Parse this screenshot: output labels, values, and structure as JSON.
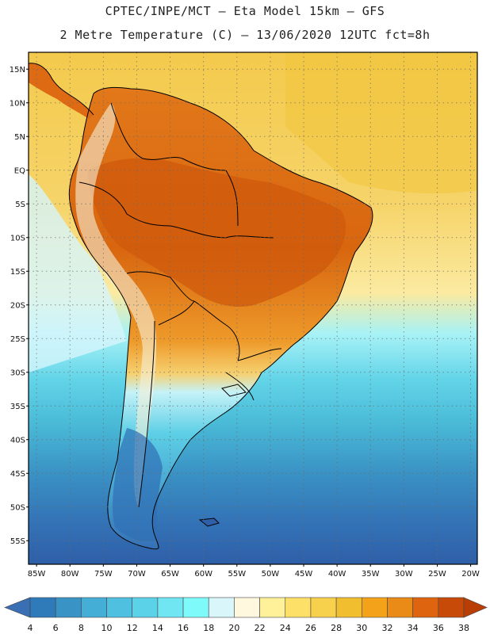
{
  "header": {
    "line1": "CPTEC/INPE/MCT –  Eta Model 15km – GFS",
    "line2": "2 Metre Temperature (C) – 13/06/2020 12UTC fct=8h"
  },
  "axes": {
    "lat_labels": [
      "15N",
      "10N",
      "5N",
      "EQ",
      "5S",
      "10S",
      "15S",
      "20S",
      "25S",
      "30S",
      "35S",
      "40S",
      "45S",
      "50S",
      "55S"
    ],
    "lon_labels": [
      "85W",
      "80W",
      "75W",
      "70W",
      "65W",
      "60W",
      "55W",
      "50W",
      "45W",
      "40W",
      "35W",
      "30W",
      "25W",
      "20W"
    ]
  },
  "colorbar": {
    "labels": [
      "4",
      "6",
      "8",
      "10",
      "12",
      "14",
      "16",
      "18",
      "20",
      "22",
      "24",
      "26",
      "28",
      "30",
      "32",
      "34",
      "36",
      "38"
    ],
    "colors": [
      "#3a6fb4",
      "#2f7ab8",
      "#3a93c5",
      "#45aed6",
      "#4fc0df",
      "#5cd2e8",
      "#6fe6f2",
      "#7ffafb",
      "#d9f6fb",
      "#fff7de",
      "#fff199",
      "#fde067",
      "#f7d04c",
      "#f0be2f",
      "#f4a21a",
      "#ea8a17",
      "#de6410",
      "#c84a08",
      "#b93e05"
    ]
  },
  "colors": {
    "ocean_warm": "#f6d364",
    "ocean_warmer": "#f0c43c",
    "ocean_mid": "#7ee9f3",
    "ocean_cool": "#4bbcd8",
    "ocean_cold": "#3480c0",
    "ocean_coldest": "#2e5fa8",
    "land_hot": "#d86a14",
    "land_warm": "#ee9a2a",
    "land_mild": "#f5c04a",
    "land_cool": "#bfeef9",
    "andes": "#f5f0d8"
  }
}
